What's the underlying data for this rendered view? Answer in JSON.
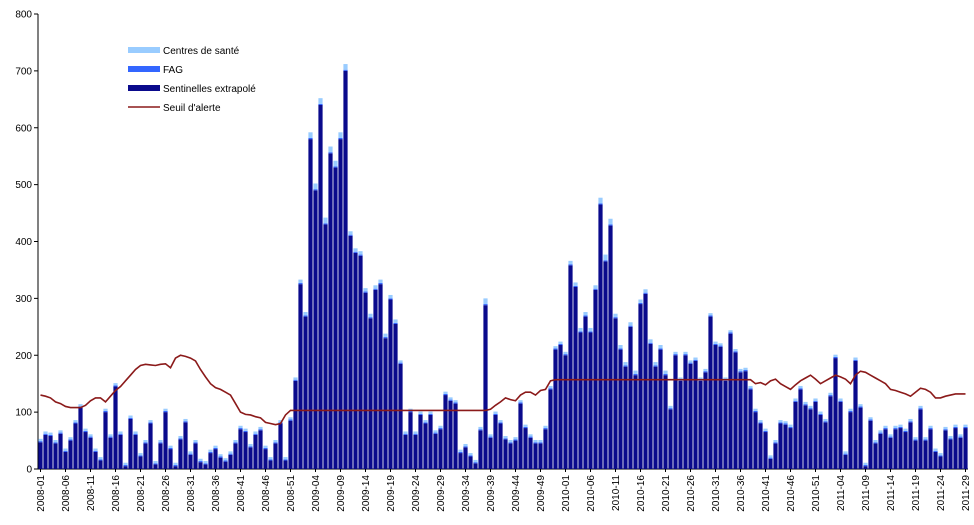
{
  "chart_data": {
    "type": "bar",
    "stacked": true,
    "categories": [
      "2008-01",
      null,
      null,
      null,
      null,
      "2008-06",
      null,
      null,
      null,
      null,
      "2008-11",
      null,
      null,
      null,
      null,
      "2008-16",
      null,
      null,
      null,
      null,
      "2008-21",
      null,
      null,
      null,
      null,
      "2008-26",
      null,
      null,
      null,
      null,
      "2008-31",
      null,
      null,
      null,
      null,
      "2008-36",
      null,
      null,
      null,
      null,
      "2008-41",
      null,
      null,
      null,
      null,
      "2008-46",
      null,
      null,
      null,
      null,
      "2008-51",
      null,
      null,
      null,
      null,
      "2009-04",
      null,
      null,
      null,
      null,
      "2009-09",
      null,
      null,
      null,
      null,
      "2009-14",
      null,
      null,
      null,
      null,
      "2009-19",
      null,
      null,
      null,
      null,
      "2009-24",
      null,
      null,
      null,
      null,
      "2009-29",
      null,
      null,
      null,
      null,
      "2009-34",
      null,
      null,
      null,
      null,
      "2009-39",
      null,
      null,
      null,
      null,
      "2009-44",
      null,
      null,
      null,
      null,
      "2009-49",
      null,
      null,
      null,
      null,
      "2010-01",
      null,
      null,
      null,
      null,
      "2010-06",
      null,
      null,
      null,
      null,
      "2010-11",
      null,
      null,
      null,
      null,
      "2010-16",
      null,
      null,
      null,
      null,
      "2010-21",
      null,
      null,
      null,
      null,
      "2010-26",
      null,
      null,
      null,
      null,
      "2010-31",
      null,
      null,
      null,
      null,
      "2010-36",
      null,
      null,
      null,
      null,
      "2010-41",
      null,
      null,
      null,
      null,
      "2010-46",
      null,
      null,
      null,
      null,
      "2010-51",
      null,
      null,
      null,
      null,
      "2011-04",
      null,
      null,
      null,
      null,
      "2011-09",
      null,
      null,
      null,
      null,
      "2011-14",
      null,
      null,
      null,
      null,
      "2011-19",
      null,
      null,
      null,
      null,
      "2011-24",
      null,
      null,
      null,
      null,
      "2011-29"
    ],
    "series": [
      {
        "name": "Centres de santé",
        "color": "#99ccff",
        "values": [
          4,
          4,
          4,
          4,
          4,
          4,
          4,
          4,
          4,
          4,
          4,
          4,
          4,
          4,
          4,
          4,
          4,
          4,
          4,
          4,
          4,
          4,
          4,
          4,
          4,
          4,
          4,
          4,
          4,
          4,
          4,
          4,
          4,
          4,
          4,
          4,
          4,
          4,
          4,
          4,
          4,
          4,
          4,
          4,
          4,
          4,
          4,
          4,
          4,
          4,
          4,
          4,
          6,
          6,
          10,
          10,
          10,
          10,
          10,
          10,
          10,
          10,
          6,
          6,
          6,
          6,
          6,
          6,
          6,
          6,
          6,
          6,
          4,
          4,
          4,
          4,
          4,
          4,
          4,
          4,
          4,
          4,
          4,
          4,
          4,
          4,
          4,
          4,
          4,
          10,
          4,
          4,
          4,
          4,
          4,
          4,
          4,
          4,
          4,
          4,
          4,
          4,
          4,
          4,
          4,
          4,
          6,
          6,
          6,
          6,
          6,
          6,
          10,
          10,
          10,
          6,
          6,
          6,
          6,
          6,
          6,
          6,
          6,
          6,
          6,
          6,
          4,
          4,
          4,
          4,
          4,
          4,
          4,
          4,
          4,
          4,
          4,
          4,
          4,
          4,
          4,
          4,
          4,
          4,
          4,
          4,
          4,
          4,
          4,
          4,
          4,
          4,
          4,
          4,
          4,
          4,
          4,
          4,
          4,
          4,
          4,
          4,
          4,
          4,
          4,
          4,
          4,
          4,
          4,
          4,
          4,
          4,
          4,
          4,
          4,
          4,
          4,
          4,
          4,
          4,
          4,
          4,
          4,
          4,
          4,
          4
        ]
      },
      {
        "name": "FAG",
        "color": "#3366ff",
        "values": [
          2,
          2,
          2,
          2,
          2,
          2,
          2,
          2,
          2,
          2,
          2,
          2,
          2,
          2,
          2,
          2,
          2,
          2,
          2,
          2,
          2,
          2,
          2,
          2,
          2,
          2,
          2,
          2,
          2,
          2,
          2,
          2,
          2,
          2,
          2,
          2,
          2,
          2,
          2,
          2,
          2,
          2,
          2,
          2,
          2,
          2,
          2,
          2,
          2,
          2,
          2,
          2,
          2,
          2,
          2,
          2,
          2,
          2,
          2,
          2,
          2,
          2,
          2,
          2,
          2,
          2,
          2,
          2,
          2,
          2,
          2,
          2,
          2,
          2,
          2,
          2,
          2,
          2,
          2,
          2,
          2,
          2,
          2,
          2,
          2,
          2,
          2,
          2,
          2,
          2,
          2,
          2,
          2,
          2,
          2,
          2,
          2,
          2,
          2,
          2,
          2,
          2,
          2,
          2,
          2,
          2,
          2,
          2,
          2,
          2,
          2,
          2,
          2,
          2,
          2,
          2,
          2,
          2,
          2,
          2,
          2,
          2,
          2,
          2,
          2,
          2,
          2,
          2,
          2,
          2,
          2,
          2,
          2,
          2,
          2,
          2,
          2,
          2,
          2,
          2,
          2,
          2,
          2,
          2,
          2,
          2,
          2,
          2,
          2,
          2,
          2,
          2,
          2,
          2,
          2,
          2,
          2,
          2,
          2,
          2,
          2,
          2,
          2,
          2,
          2,
          2,
          2,
          2,
          2,
          2,
          2,
          2,
          2,
          2,
          2,
          2,
          2,
          2,
          2,
          2,
          2,
          2,
          2,
          2,
          2,
          2
        ]
      },
      {
        "name": "Sentinelles extrapolé",
        "color": "#0a0a8c",
        "values": [
          47,
          60,
          58,
          45,
          62,
          30,
          50,
          80,
          108,
          65,
          55,
          30,
          15,
          100,
          55,
          145,
          60,
          5,
          88,
          60,
          22,
          45,
          80,
          8,
          45,
          100,
          35,
          5,
          52,
          82,
          25,
          45,
          12,
          8,
          28,
          35,
          20,
          13,
          25,
          45,
          70,
          65,
          38,
          60,
          68,
          35,
          15,
          45,
          80,
          15,
          85,
          155,
          325,
          268,
          580,
          490,
          640,
          430,
          555,
          530,
          580,
          700,
          410,
          380,
          375,
          310,
          265,
          315,
          325,
          230,
          298,
          255,
          185,
          60,
          100,
          60,
          95,
          80,
          95,
          62,
          70,
          130,
          120,
          115,
          28,
          38,
          22,
          10,
          68,
          288,
          55,
          95,
          80,
          52,
          45,
          50,
          115,
          72,
          55,
          45,
          45,
          70,
          140,
          210,
          218,
          200,
          358,
          320,
          240,
          268,
          240,
          315,
          465,
          365,
          428,
          265,
          210,
          180,
          250,
          165,
          290,
          308,
          220,
          180,
          210,
          165,
          105,
          200,
          155,
          200,
          185,
          190,
          155,
          170,
          268,
          218,
          215,
          155,
          238,
          205,
          170,
          172,
          140,
          100,
          80,
          65,
          18,
          45,
          80,
          78,
          72,
          118,
          140,
          112,
          105,
          118,
          95,
          82,
          128,
          195,
          118,
          25,
          100,
          190,
          108,
          5,
          85,
          45,
          62,
          70,
          55,
          70,
          72,
          65,
          82,
          50,
          105,
          50,
          70,
          30,
          22,
          68,
          52,
          72,
          55,
          72
        ]
      },
      {
        "name": "Seuil d'alerte",
        "type": "line",
        "color": "#8b1a1a",
        "values": [
          130,
          128,
          125,
          118,
          115,
          110,
          108,
          108,
          108,
          112,
          120,
          125,
          125,
          118,
          128,
          138,
          145,
          155,
          165,
          175,
          182,
          184,
          183,
          182,
          184,
          185,
          178,
          195,
          200,
          198,
          195,
          190,
          175,
          162,
          150,
          143,
          140,
          135,
          130,
          115,
          100,
          96,
          95,
          92,
          90,
          82,
          80,
          78,
          80,
          95,
          103,
          103,
          103,
          103,
          103,
          103,
          103,
          103,
          103,
          103,
          103,
          103,
          103,
          103,
          103,
          103,
          103,
          103,
          103,
          103,
          103,
          103,
          103,
          103,
          103,
          103,
          103,
          103,
          103,
          103,
          103,
          103,
          103,
          103,
          103,
          103,
          103,
          103,
          103,
          103,
          105,
          112,
          118,
          125,
          122,
          120,
          130,
          135,
          135,
          130,
          138,
          140,
          155,
          157,
          157,
          157,
          157,
          157,
          157,
          157,
          157,
          157,
          157,
          157,
          157,
          157,
          157,
          157,
          157,
          157,
          157,
          157,
          157,
          157,
          157,
          157,
          157,
          157,
          157,
          157,
          157,
          157,
          157,
          157,
          157,
          157,
          157,
          157,
          157,
          157,
          157,
          157,
          157,
          150,
          152,
          148,
          155,
          158,
          150,
          145,
          140,
          148,
          155,
          160,
          165,
          158,
          150,
          155,
          160,
          165,
          162,
          158,
          150,
          165,
          172,
          170,
          165,
          160,
          155,
          150,
          140,
          138,
          135,
          132,
          128,
          135,
          142,
          140,
          135,
          125,
          125,
          128,
          130,
          132,
          132,
          132
        ]
      }
    ],
    "ylim": [
      0,
      800
    ],
    "yticks": [
      0,
      100,
      200,
      300,
      400,
      500,
      600,
      700,
      800
    ],
    "grid": false
  }
}
